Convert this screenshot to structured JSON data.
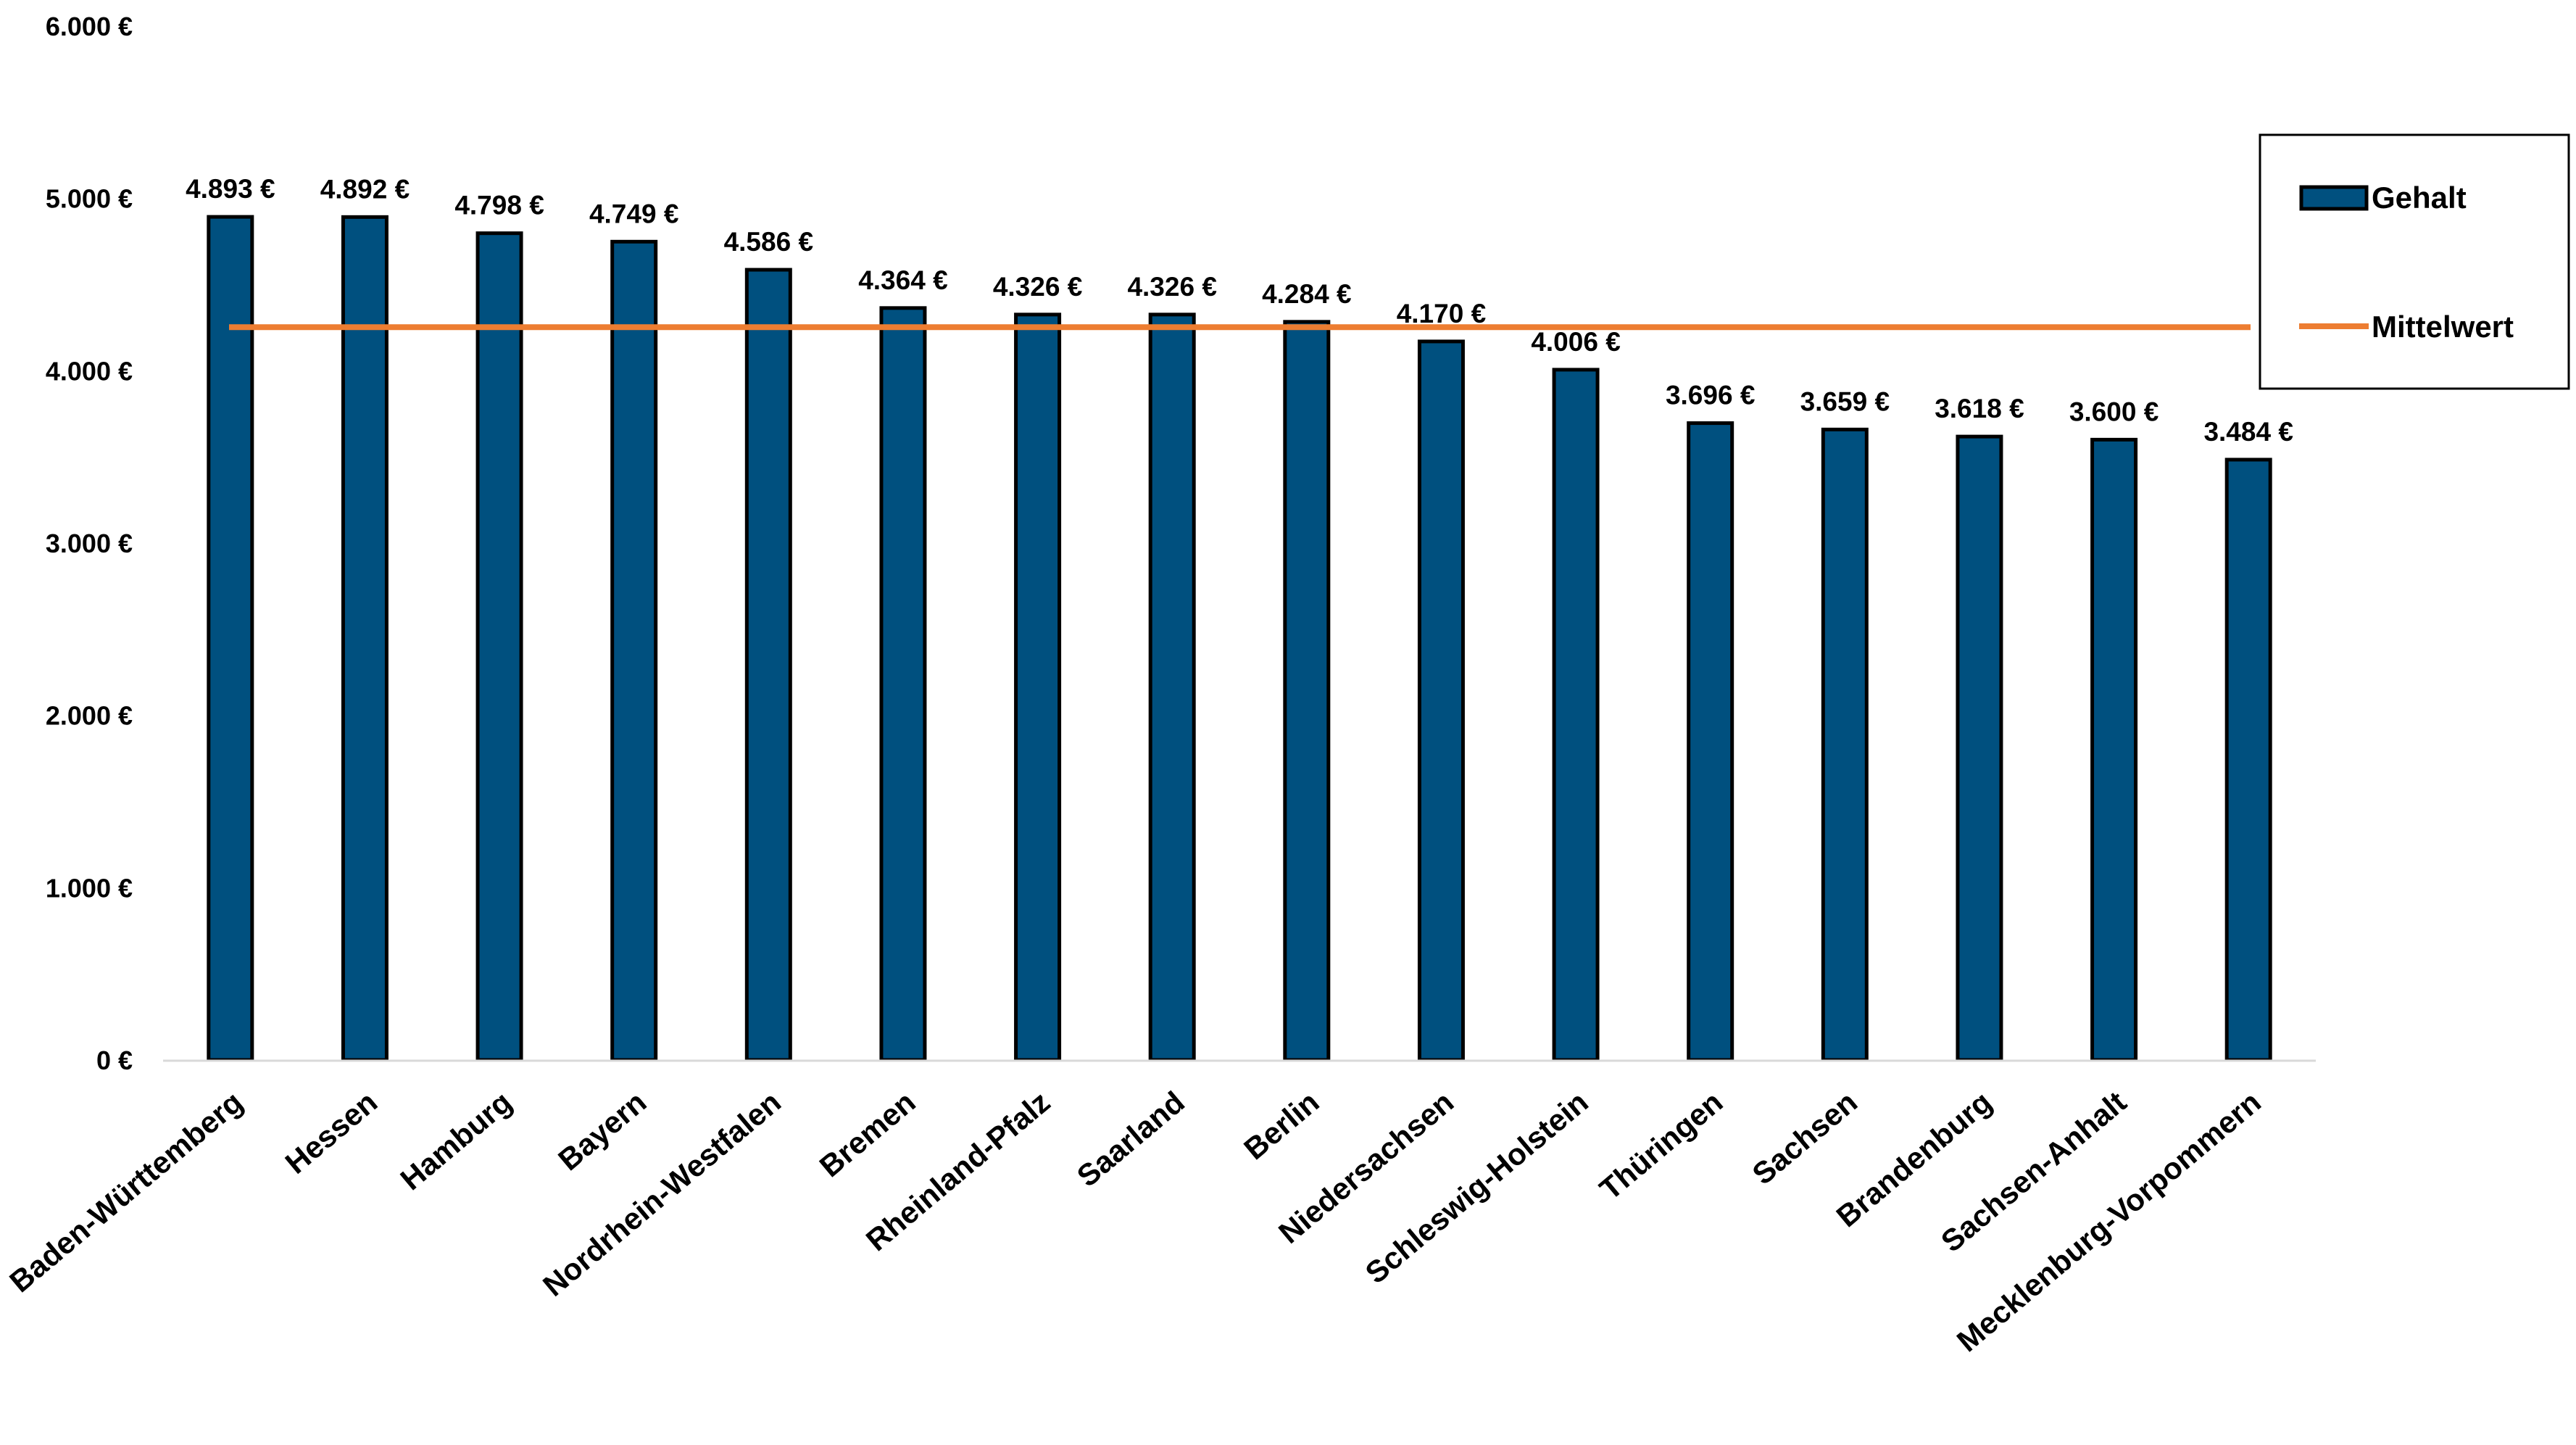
{
  "chart_data": {
    "type": "bar",
    "categories": [
      "Baden-Württemberg",
      "Hessen",
      "Hamburg",
      "Bayern",
      "Nordrhein-Westfalen",
      "Bremen",
      "Rheinland-Pfalz",
      "Saarland",
      "Berlin",
      "Niedersachsen",
      "Schleswig-Holstein",
      "Thüringen",
      "Sachsen",
      "Brandenburg",
      "Sachsen-Anhalt",
      "Mecklenburg-Vorpommern"
    ],
    "series": [
      {
        "name": "Gehalt",
        "type": "bar",
        "color": "#00507f",
        "values": [
          4893,
          4892,
          4798,
          4749,
          4586,
          4364,
          4326,
          4326,
          4284,
          4170,
          4006,
          3696,
          3659,
          3618,
          3600,
          3484
        ],
        "data_labels": [
          "4.893 €",
          "4.892 €",
          "4.798 €",
          "4.749 €",
          "4.586 €",
          "4.364 €",
          "4.326 €",
          "4.326 €",
          "4.284 €",
          "4.170 €",
          "4.006 €",
          "3.696 €",
          "3.659 €",
          "3.618 €",
          "3.600 €",
          "3.484 €"
        ]
      },
      {
        "name": "Mittelwert",
        "type": "line",
        "color": "#ed7d31",
        "value": 4253
      }
    ],
    "ylim": [
      0,
      6000
    ],
    "yticks": [
      0,
      1000,
      2000,
      3000,
      4000,
      5000,
      6000
    ],
    "ytick_labels": [
      "0 €",
      "1.000 €",
      "2.000 €",
      "3.000 €",
      "4.000 €",
      "5.000 €",
      "6.000 €"
    ],
    "grid": false,
    "legend": {
      "position": "right"
    }
  }
}
